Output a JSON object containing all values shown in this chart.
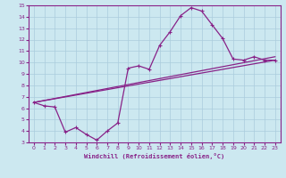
{
  "xlabel": "Windchill (Refroidissement éolien,°C)",
  "bg_color": "#cce8f0",
  "line_color": "#882288",
  "grid_color": "#aaccdd",
  "xlim": [
    -0.5,
    23.5
  ],
  "ylim": [
    3,
    15
  ],
  "xticks": [
    0,
    1,
    2,
    3,
    4,
    5,
    6,
    7,
    8,
    9,
    10,
    11,
    12,
    13,
    14,
    15,
    16,
    17,
    18,
    19,
    20,
    21,
    22,
    23
  ],
  "yticks": [
    3,
    4,
    5,
    6,
    7,
    8,
    9,
    10,
    11,
    12,
    13,
    14,
    15
  ],
  "curve1_x": [
    0,
    1,
    2,
    3,
    4,
    5,
    6,
    7,
    8,
    9,
    10,
    11,
    12,
    13,
    14,
    15,
    16,
    17,
    18,
    19,
    20,
    21,
    22,
    23
  ],
  "curve1_y": [
    6.5,
    6.2,
    6.1,
    3.9,
    4.3,
    3.7,
    3.2,
    4.0,
    4.7,
    9.5,
    9.7,
    9.4,
    11.5,
    12.7,
    14.1,
    14.8,
    14.5,
    13.3,
    12.1,
    10.3,
    10.2,
    10.5,
    10.2,
    10.2
  ],
  "line2_x": [
    0,
    23
  ],
  "line2_y": [
    6.5,
    10.2
  ],
  "line3_x": [
    0,
    23
  ],
  "line3_y": [
    6.5,
    10.5
  ]
}
